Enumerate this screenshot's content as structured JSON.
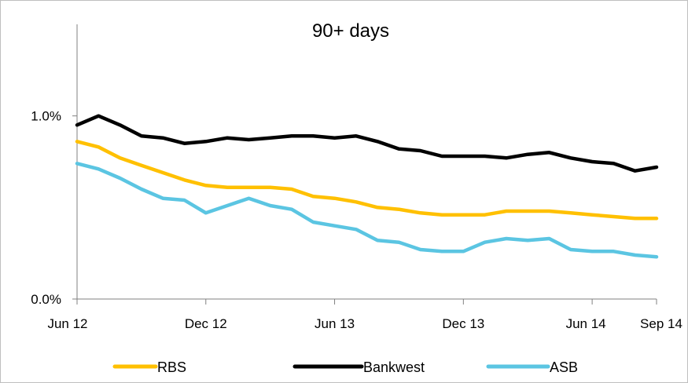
{
  "chart_data": {
    "type": "line",
    "title": "90+ days",
    "xlabel": "",
    "ylabel": "",
    "x_tick_labels": [
      "Jun 12",
      "Dec 12",
      "Jun 13",
      "Dec 13",
      "Jun 14",
      "Sep 14"
    ],
    "y_tick_labels": [
      "0.0%",
      "1.0%"
    ],
    "ylim": [
      0,
      1.5
    ],
    "grid": false,
    "legend_position": "bottom",
    "series": [
      {
        "name": "RBS",
        "color": "#ffc000",
        "values": [
          0.86,
          0.83,
          0.77,
          0.73,
          0.69,
          0.65,
          0.62,
          0.61,
          0.61,
          0.61,
          0.6,
          0.56,
          0.55,
          0.53,
          0.5,
          0.49,
          0.47,
          0.46,
          0.46,
          0.46,
          0.48,
          0.48,
          0.48,
          0.47,
          0.46,
          0.45,
          0.44,
          0.44
        ]
      },
      {
        "name": "Bankwest",
        "color": "#000000",
        "values": [
          0.95,
          1.0,
          0.95,
          0.89,
          0.88,
          0.85,
          0.86,
          0.88,
          0.87,
          0.88,
          0.89,
          0.89,
          0.88,
          0.89,
          0.86,
          0.82,
          0.81,
          0.78,
          0.78,
          0.78,
          0.77,
          0.79,
          0.8,
          0.77,
          0.75,
          0.74,
          0.7,
          0.72
        ]
      },
      {
        "name": "ASB",
        "color": "#5bc5e2",
        "values": [
          0.74,
          0.71,
          0.66,
          0.6,
          0.55,
          0.54,
          0.47,
          0.51,
          0.55,
          0.51,
          0.49,
          0.42,
          0.4,
          0.38,
          0.32,
          0.31,
          0.27,
          0.26,
          0.26,
          0.31,
          0.33,
          0.32,
          0.33,
          0.27,
          0.26,
          0.26,
          0.24,
          0.23
        ]
      }
    ]
  }
}
